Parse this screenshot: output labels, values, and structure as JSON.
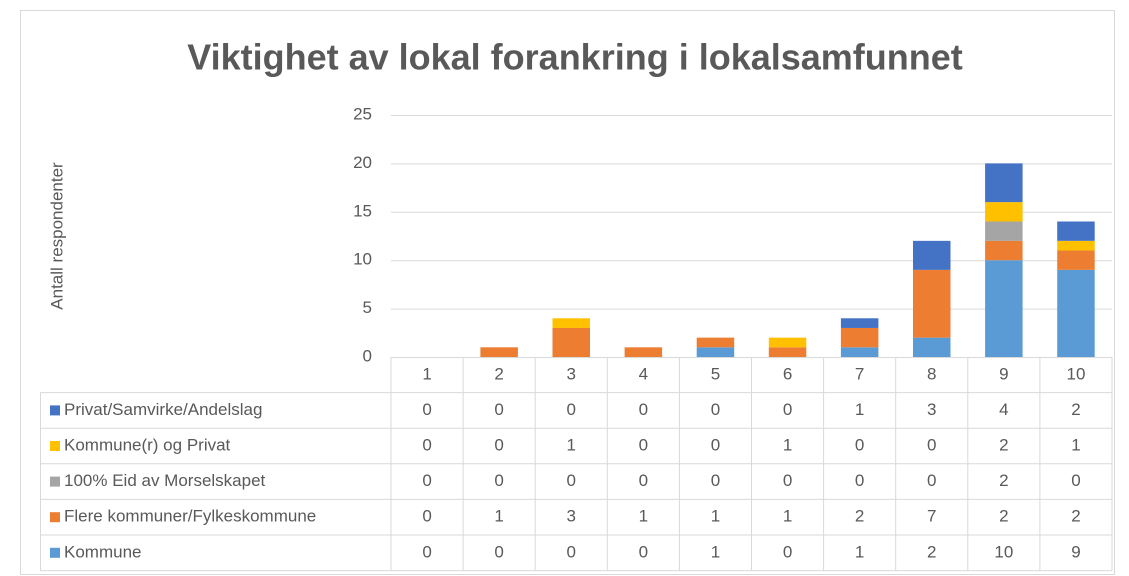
{
  "chart_data": {
    "type": "bar",
    "stacked": true,
    "title": "Viktighet av lokal forankring i lokalsamfunnet",
    "ylabel": "Antall respondenter",
    "categories": [
      "1",
      "2",
      "3",
      "4",
      "5",
      "6",
      "7",
      "8",
      "9",
      "10"
    ],
    "series": [
      {
        "name": "Kommune",
        "color": "#5b9bd5",
        "values": [
          0,
          0,
          0,
          0,
          1,
          0,
          1,
          2,
          10,
          9
        ]
      },
      {
        "name": "Flere kommuner/Fylkeskommune",
        "color": "#ed7d31",
        "values": [
          0,
          1,
          3,
          1,
          1,
          1,
          2,
          7,
          2,
          2
        ]
      },
      {
        "name": "100% Eid av Morselskapet",
        "color": "#a5a5a5",
        "values": [
          0,
          0,
          0,
          0,
          0,
          0,
          0,
          0,
          2,
          0
        ]
      },
      {
        "name": "Kommune(r) og Privat",
        "color": "#ffc000",
        "values": [
          0,
          0,
          1,
          0,
          0,
          1,
          0,
          0,
          2,
          1
        ]
      },
      {
        "name": "Privat/Samvirke/Andelslag",
        "color": "#4472c4",
        "values": [
          0,
          0,
          0,
          0,
          0,
          0,
          1,
          3,
          4,
          2
        ]
      }
    ],
    "ylim": [
      0,
      25
    ],
    "yticks": [
      0,
      5,
      10,
      15,
      20,
      25
    ],
    "grid": true
  }
}
